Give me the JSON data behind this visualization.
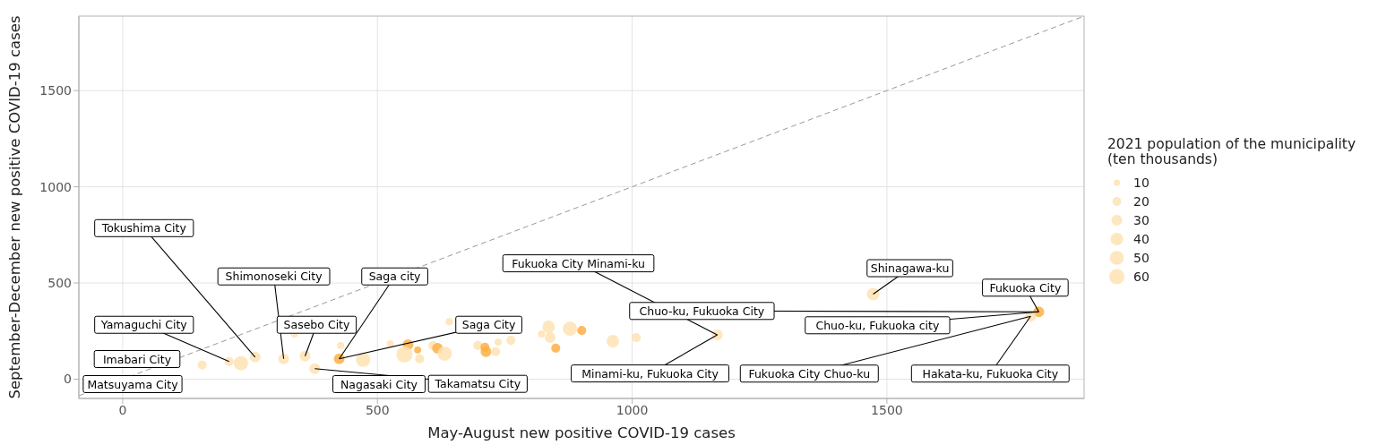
{
  "chart_data": {
    "type": "bubble",
    "xlabel": "May-August new positive COVID-19 cases",
    "ylabel": "September-December new positive COVID-19 cases",
    "legend_title": "2021 population of the municipality\n(ten thousands)",
    "xlim": [
      -86,
      1887
    ],
    "ylim": [
      -100,
      1887
    ],
    "xticks": [
      0,
      500,
      1000,
      1500
    ],
    "yticks": [
      0,
      500,
      1000,
      1500
    ],
    "grid": true,
    "size_legend": [
      10,
      20,
      30,
      40,
      50,
      60
    ],
    "series": [
      {
        "color": "#fee2b3",
        "x": [
          156,
          209,
          232,
          260,
          316,
          358,
          377,
          337,
          425,
          472,
          428,
          525,
          560,
          553,
          579,
          583,
          609,
          618,
          632,
          641,
          697,
          711,
          713,
          732,
          737,
          762,
          822,
          836,
          839,
          850,
          878,
          901,
          962,
          1008,
          1167,
          1473,
          1798,
          1782
        ],
        "values": [
          74,
          92,
          83,
          115,
          106,
          120,
          55,
          235,
          106,
          101,
          175,
          184,
          179,
          129,
          152,
          106,
          175,
          161,
          133,
          299,
          175,
          166,
          143,
          143,
          193,
          202,
          235,
          272,
          216,
          161,
          262,
          253,
          198,
          216,
          230,
          442,
          350,
          327
        ],
        "sizes": [
          21,
          21,
          53,
          30,
          30,
          30,
          30,
          13,
          30,
          53,
          13,
          13,
          30,
          67,
          13,
          21,
          21,
          30,
          53,
          13,
          21,
          21,
          30,
          21,
          13,
          21,
          13,
          40,
          30,
          21,
          53,
          21,
          40,
          21,
          30,
          40,
          30,
          30
        ],
        "colors": [
          "#fee2b3",
          "#fee2b3",
          "#fee2b3",
          "#fee2b3",
          "#fee2b3",
          "#fee2b3",
          "#fee2b3",
          "#fee2b3",
          "#fdb045",
          "#fee2b3",
          "#fee2b3",
          "#fee2b3",
          "#fdb045",
          "#fee2b3",
          "#fdb045",
          "#fee2b3",
          "#fee2b3",
          "#fdb045",
          "#fee2b3",
          "#fee2b3",
          "#fee2b3",
          "#fdb045",
          "#fdb045",
          "#fee2b3",
          "#fee2b3",
          "#fee2b3",
          "#fee2b3",
          "#fee2b3",
          "#fee2b3",
          "#fdb045",
          "#fee2b3",
          "#fdb045",
          "#fee2b3",
          "#fee2b3",
          "#fee2b3",
          "#fee2b3",
          "#fdb045",
          "#fee2b3"
        ]
      },
      {
        "type": "line",
        "color": "#999999",
        "line_style": "dashed",
        "x": [
          -86,
          1887
        ],
        "values": [
          -86,
          1887
        ]
      }
    ],
    "annotations": [
      {
        "text": "Tokushima City",
        "x": 260,
        "y": 115
      },
      {
        "text": "Shimonoseki City",
        "x": 316,
        "y": 106
      },
      {
        "text": "Sasebo City",
        "x": 358,
        "y": 120
      },
      {
        "text": "Saga city",
        "x": 425,
        "y": 106
      },
      {
        "text": "Saga City",
        "x": 425,
        "y": 106
      },
      {
        "text": "Takamatsu City",
        "x": 377,
        "y": 55
      },
      {
        "text": "Yamaguchi City",
        "x": 209,
        "y": 92
      },
      "Matsuyama City",
      "Imabari City",
      "Nagasaki City",
      {
        "text": "Fukuoka City Minami-ku",
        "x": 1167,
        "y": 230
      },
      {
        "text": "Chuo-ku, Fukuoka City",
        "x": 1798,
        "y": 350
      },
      {
        "text": "Minami-ku, Fukuoka City",
        "x": 1167,
        "y": 230
      },
      {
        "text": "Fukuoka City",
        "x": 1798,
        "y": 350
      },
      {
        "text": "Shinagawa-ku",
        "x": 1473,
        "y": 442
      },
      {
        "text": "Chuo-ku, Fukuoka city",
        "x": 1798,
        "y": 350
      },
      {
        "text": "Fukuoka City Chuo-ku",
        "x": 1782,
        "y": 327
      },
      {
        "text": "Hakata-ku, Fukuoka City",
        "x": 1782,
        "y": 327
      }
    ]
  }
}
